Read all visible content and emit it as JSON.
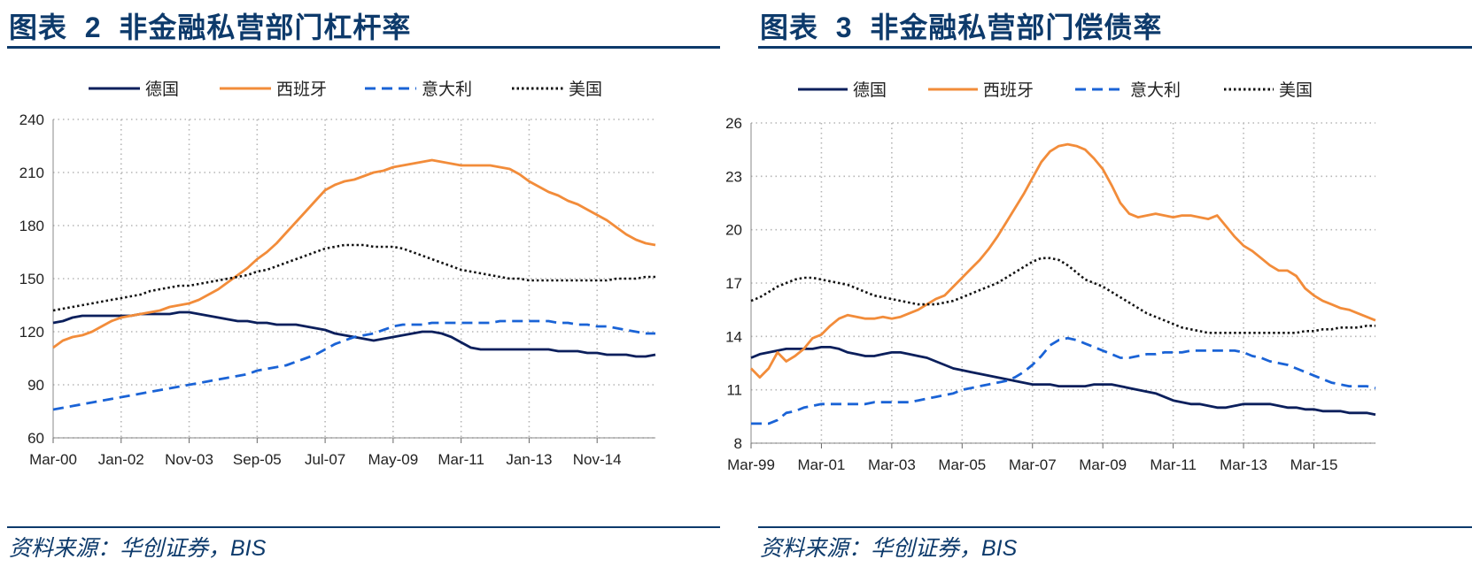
{
  "source_text": "资料来源：华创证券，BIS",
  "chart_data": [
    {
      "type": "line",
      "figure_label": "图表",
      "figure_number": "2",
      "title": "非金融私营部门杠杆率",
      "xlabel": "",
      "ylabel": "",
      "x_tick_labels": [
        "Mar-00",
        "Jan-02",
        "Nov-03",
        "Sep-05",
        "Jul-07",
        "May-09",
        "Mar-11",
        "Jan-13",
        "Nov-14"
      ],
      "x_tick_positions": [
        0,
        7,
        14,
        21,
        28,
        35,
        42,
        49,
        56
      ],
      "x_range": [
        0,
        62
      ],
      "y_ticks": [
        60,
        90,
        120,
        150,
        180,
        210,
        240
      ],
      "ylim": [
        60,
        240
      ],
      "grid": true,
      "legend_position": "top",
      "series": [
        {
          "name": "德国",
          "color": "#0b1f5c",
          "dash": "solid",
          "values": [
            125,
            126,
            128,
            129,
            129,
            129,
            129,
            129,
            129,
            130,
            130,
            130,
            130,
            131,
            131,
            130,
            129,
            128,
            127,
            126,
            126,
            125,
            125,
            124,
            124,
            124,
            123,
            122,
            121,
            119,
            118,
            117,
            116,
            115,
            116,
            117,
            118,
            119,
            120,
            120,
            119,
            117,
            114,
            111,
            110,
            110,
            110,
            110,
            110,
            110,
            110,
            110,
            109,
            109,
            109,
            108,
            108,
            107,
            107,
            107,
            106,
            106,
            107
          ]
        },
        {
          "name": "西班牙",
          "color": "#f28c3a",
          "dash": "solid",
          "values": [
            111,
            115,
            117,
            118,
            120,
            123,
            126,
            128,
            129,
            130,
            131,
            132,
            134,
            135,
            136,
            138,
            141,
            144,
            148,
            152,
            156,
            161,
            165,
            170,
            176,
            182,
            188,
            194,
            200,
            203,
            205,
            206,
            208,
            210,
            211,
            213,
            214,
            215,
            216,
            217,
            216,
            215,
            214,
            214,
            214,
            214,
            213,
            212,
            209,
            205,
            202,
            199,
            197,
            194,
            192,
            189,
            186,
            183,
            179,
            175,
            172,
            170,
            169
          ]
        },
        {
          "name": "意大利",
          "color": "#1a63d6",
          "dash": "dash",
          "values": [
            76,
            77,
            78,
            79,
            80,
            81,
            82,
            83,
            84,
            85,
            86,
            87,
            88,
            89,
            90,
            91,
            92,
            93,
            94,
            95,
            96,
            98,
            99,
            100,
            101,
            103,
            105,
            107,
            110,
            113,
            115,
            117,
            118,
            119,
            121,
            123,
            124,
            124,
            124,
            125,
            125,
            125,
            125,
            125,
            125,
            125,
            126,
            126,
            126,
            126,
            126,
            126,
            125,
            125,
            124,
            124,
            123,
            123,
            122,
            121,
            120,
            119,
            119
          ]
        },
        {
          "name": "美国",
          "color": "#111111",
          "dash": "dot",
          "values": [
            132,
            133,
            134,
            135,
            136,
            137,
            138,
            139,
            140,
            141,
            143,
            144,
            145,
            146,
            146,
            147,
            148,
            149,
            150,
            151,
            152,
            154,
            155,
            157,
            159,
            161,
            163,
            165,
            167,
            168,
            169,
            169,
            169,
            168,
            168,
            168,
            167,
            165,
            163,
            161,
            159,
            157,
            155,
            154,
            153,
            152,
            151,
            150,
            150,
            149,
            149,
            149,
            149,
            149,
            149,
            149,
            149,
            149,
            150,
            150,
            150,
            151,
            151
          ]
        }
      ]
    },
    {
      "type": "line",
      "figure_label": "图表",
      "figure_number": "3",
      "title": "非金融私营部门偿债率",
      "xlabel": "",
      "ylabel": "",
      "x_tick_labels": [
        "Mar-99",
        "Mar-01",
        "Mar-03",
        "Mar-05",
        "Mar-07",
        "Mar-09",
        "Mar-11",
        "Mar-13",
        "Mar-15"
      ],
      "x_tick_positions": [
        0,
        8,
        16,
        24,
        32,
        40,
        48,
        56,
        64
      ],
      "x_range": [
        0,
        71
      ],
      "y_ticks": [
        8,
        11,
        14,
        17,
        20,
        23,
        26
      ],
      "ylim": [
        8,
        26
      ],
      "grid": true,
      "legend_position": "top",
      "series": [
        {
          "name": "德国",
          "color": "#0b1f5c",
          "dash": "solid",
          "values": [
            12.8,
            13.0,
            13.1,
            13.2,
            13.3,
            13.3,
            13.3,
            13.3,
            13.4,
            13.4,
            13.3,
            13.1,
            13.0,
            12.9,
            12.9,
            13.0,
            13.1,
            13.1,
            13.0,
            12.9,
            12.8,
            12.6,
            12.4,
            12.2,
            12.1,
            12.0,
            11.9,
            11.8,
            11.7,
            11.6,
            11.5,
            11.4,
            11.3,
            11.3,
            11.3,
            11.2,
            11.2,
            11.2,
            11.2,
            11.3,
            11.3,
            11.3,
            11.2,
            11.1,
            11.0,
            10.9,
            10.8,
            10.6,
            10.4,
            10.3,
            10.2,
            10.2,
            10.1,
            10.0,
            10.0,
            10.1,
            10.2,
            10.2,
            10.2,
            10.2,
            10.1,
            10.0,
            10.0,
            9.9,
            9.9,
            9.8,
            9.8,
            9.8,
            9.7,
            9.7,
            9.7,
            9.6
          ]
        },
        {
          "name": "西班牙",
          "color": "#f28c3a",
          "dash": "solid",
          "values": [
            12.2,
            11.7,
            12.2,
            13.1,
            12.6,
            12.9,
            13.3,
            13.9,
            14.1,
            14.6,
            15.0,
            15.2,
            15.1,
            15.0,
            15.0,
            15.1,
            15.0,
            15.1,
            15.3,
            15.5,
            15.8,
            16.1,
            16.3,
            16.8,
            17.3,
            17.8,
            18.3,
            18.9,
            19.6,
            20.4,
            21.2,
            22.0,
            22.9,
            23.8,
            24.4,
            24.7,
            24.8,
            24.7,
            24.5,
            24.0,
            23.4,
            22.5,
            21.5,
            20.9,
            20.7,
            20.8,
            20.9,
            20.8,
            20.7,
            20.8,
            20.8,
            20.7,
            20.6,
            20.8,
            20.2,
            19.6,
            19.1,
            18.8,
            18.4,
            18.0,
            17.7,
            17.7,
            17.4,
            16.7,
            16.3,
            16.0,
            15.8,
            15.6,
            15.5,
            15.3,
            15.1,
            14.9
          ]
        },
        {
          "name": "意大利",
          "color": "#1a63d6",
          "dash": "dash",
          "values": [
            9.1,
            9.1,
            9.1,
            9.3,
            9.7,
            9.8,
            10.0,
            10.1,
            10.2,
            10.2,
            10.2,
            10.2,
            10.2,
            10.2,
            10.3,
            10.3,
            10.3,
            10.3,
            10.3,
            10.4,
            10.5,
            10.6,
            10.7,
            10.8,
            11.0,
            11.1,
            11.2,
            11.3,
            11.4,
            11.5,
            11.7,
            12.0,
            12.4,
            12.9,
            13.5,
            13.8,
            13.9,
            13.8,
            13.6,
            13.4,
            13.2,
            13.0,
            12.8,
            12.8,
            12.9,
            13.0,
            13.0,
            13.1,
            13.1,
            13.1,
            13.2,
            13.2,
            13.2,
            13.2,
            13.2,
            13.2,
            13.1,
            12.9,
            12.8,
            12.6,
            12.5,
            12.4,
            12.2,
            12.0,
            11.8,
            11.6,
            11.4,
            11.3,
            11.2,
            11.2,
            11.2,
            11.1
          ]
        },
        {
          "name": "美国",
          "color": "#111111",
          "dash": "dot",
          "values": [
            16.0,
            16.2,
            16.5,
            16.8,
            17.0,
            17.2,
            17.3,
            17.3,
            17.2,
            17.1,
            17.0,
            16.9,
            16.7,
            16.5,
            16.3,
            16.2,
            16.1,
            16.0,
            15.9,
            15.8,
            15.8,
            15.8,
            15.9,
            16.0,
            16.2,
            16.4,
            16.6,
            16.8,
            17.0,
            17.3,
            17.6,
            17.9,
            18.2,
            18.4,
            18.4,
            18.3,
            18.0,
            17.6,
            17.2,
            17.0,
            16.8,
            16.5,
            16.2,
            15.9,
            15.6,
            15.3,
            15.1,
            14.9,
            14.7,
            14.5,
            14.4,
            14.3,
            14.2,
            14.2,
            14.2,
            14.2,
            14.2,
            14.2,
            14.2,
            14.2,
            14.2,
            14.2,
            14.2,
            14.3,
            14.3,
            14.4,
            14.4,
            14.5,
            14.5,
            14.5,
            14.6,
            14.6
          ]
        }
      ]
    }
  ]
}
